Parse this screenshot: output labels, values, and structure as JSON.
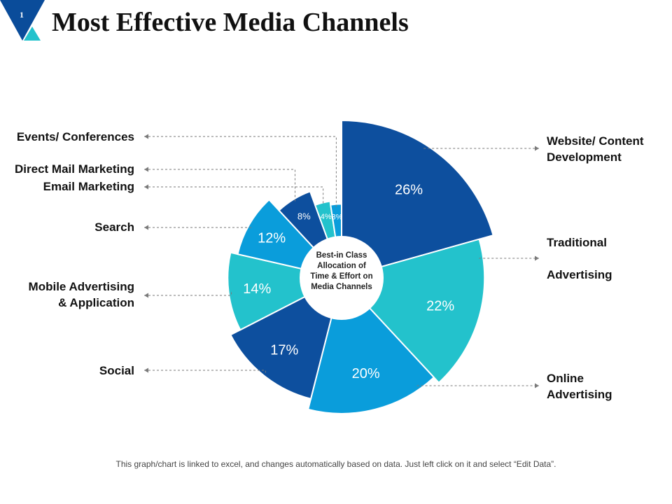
{
  "slide": {
    "number": "1",
    "title": "Most Effective Media Channels",
    "footer": "This graph/chart is linked to excel, and changes automatically based on data. Just left click on it and select “Edit Data”."
  },
  "colors": {
    "dark_blue": "#0D4F9E",
    "teal": "#23C2CC",
    "mid_blue": "#0A9DDB",
    "navy_badge": "#0A4C9A"
  },
  "chart_data": {
    "type": "pie",
    "title": "",
    "center_label": [
      "Best-in Class",
      "Allocation of",
      "Time & Effort on",
      "Media Channels"
    ],
    "slices": [
      {
        "name": "Website/ Content Development",
        "value": 26,
        "label": "26%",
        "color": "#0D4F9E"
      },
      {
        "name": "Traditional Advertising",
        "value": 22,
        "label": "22%",
        "color": "#23C2CC"
      },
      {
        "name": "Online Advertising",
        "value": 20,
        "label": "20%",
        "color": "#0A9DDB"
      },
      {
        "name": "Social",
        "value": 17,
        "label": "17%",
        "color": "#0D4F9E"
      },
      {
        "name": "Mobile Advertising & Application",
        "value": 14,
        "label": "14%",
        "color": "#23C2CC"
      },
      {
        "name": "Search",
        "value": 12,
        "label": "12%",
        "color": "#0A9DDB"
      },
      {
        "name": "Direct Mail Marketing",
        "value": 8,
        "label": "8%",
        "color": "#0D4F9E"
      },
      {
        "name": "Email Marketing",
        "value": 4,
        "label": "4%",
        "color": "#23C2CC"
      },
      {
        "name": "Events/ Conferences",
        "value": 3,
        "label": "3%",
        "color": "#0A9DDB"
      }
    ],
    "left_labels": [
      {
        "slice": "Events/ Conferences",
        "lines": [
          "Events/ Conferences"
        ]
      },
      {
        "slice": "Direct Mail Marketing",
        "lines": [
          "Direct Mail Marketing"
        ]
      },
      {
        "slice": "Email Marketing",
        "lines": [
          "Email Marketing"
        ]
      },
      {
        "slice": "Search",
        "lines": [
          "Search"
        ]
      },
      {
        "slice": "Mobile Advertising & Application",
        "lines": [
          "Mobile Advertising",
          "& Application"
        ]
      },
      {
        "slice": "Social",
        "lines": [
          "Social"
        ]
      }
    ],
    "right_labels": [
      {
        "slice": "Website/ Content Development",
        "lines": [
          "Website/ Content",
          "Development"
        ]
      },
      {
        "slice": "Traditional Advertising",
        "lines": [
          "Traditional",
          "",
          "Advertising"
        ]
      },
      {
        "slice": "Online Advertising",
        "lines": [
          "Online",
          "Advertising"
        ]
      }
    ]
  }
}
